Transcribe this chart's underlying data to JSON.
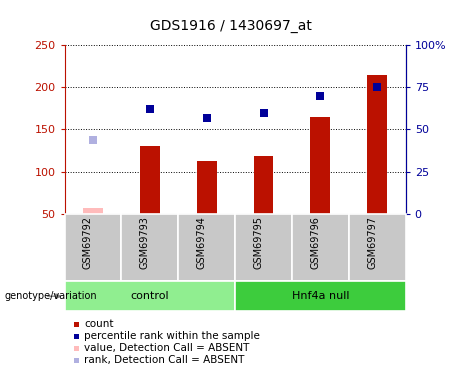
{
  "title": "GDS1916 / 1430697_at",
  "samples": [
    "GSM69792",
    "GSM69793",
    "GSM69794",
    "GSM69795",
    "GSM69796",
    "GSM69797"
  ],
  "count_values": [
    57,
    130,
    113,
    118,
    165,
    215
  ],
  "count_absent": [
    true,
    false,
    false,
    false,
    false,
    false
  ],
  "rank_values": [
    44,
    62,
    57,
    60,
    70,
    75
  ],
  "rank_absent": [
    true,
    false,
    false,
    false,
    false,
    false
  ],
  "ylim_left": [
    50,
    250
  ],
  "ylim_right": [
    0,
    100
  ],
  "yticks_left": [
    50,
    100,
    150,
    200,
    250
  ],
  "yticks_right": [
    0,
    25,
    50,
    75,
    100
  ],
  "ytick_labels_right": [
    "0",
    "25",
    "50",
    "75",
    "100%"
  ],
  "groups": [
    {
      "label": "control",
      "indices": [
        0,
        1,
        2
      ],
      "color": "#90ee90"
    },
    {
      "label": "Hnf4a null",
      "indices": [
        3,
        4,
        5
      ],
      "color": "#3dcc3d"
    }
  ],
  "bar_color_present": "#bb1100",
  "bar_color_absent": "#ffbbbb",
  "rank_color_present": "#000099",
  "rank_color_absent": "#b0b0e0",
  "bar_width": 0.35,
  "sample_col_color": "#c8c8c8",
  "legend_items": [
    {
      "label": "count",
      "color": "#bb1100"
    },
    {
      "label": "percentile rank within the sample",
      "color": "#000099"
    },
    {
      "label": "value, Detection Call = ABSENT",
      "color": "#ffbbbb"
    },
    {
      "label": "rank, Detection Call = ABSENT",
      "color": "#b0b0e0"
    }
  ]
}
